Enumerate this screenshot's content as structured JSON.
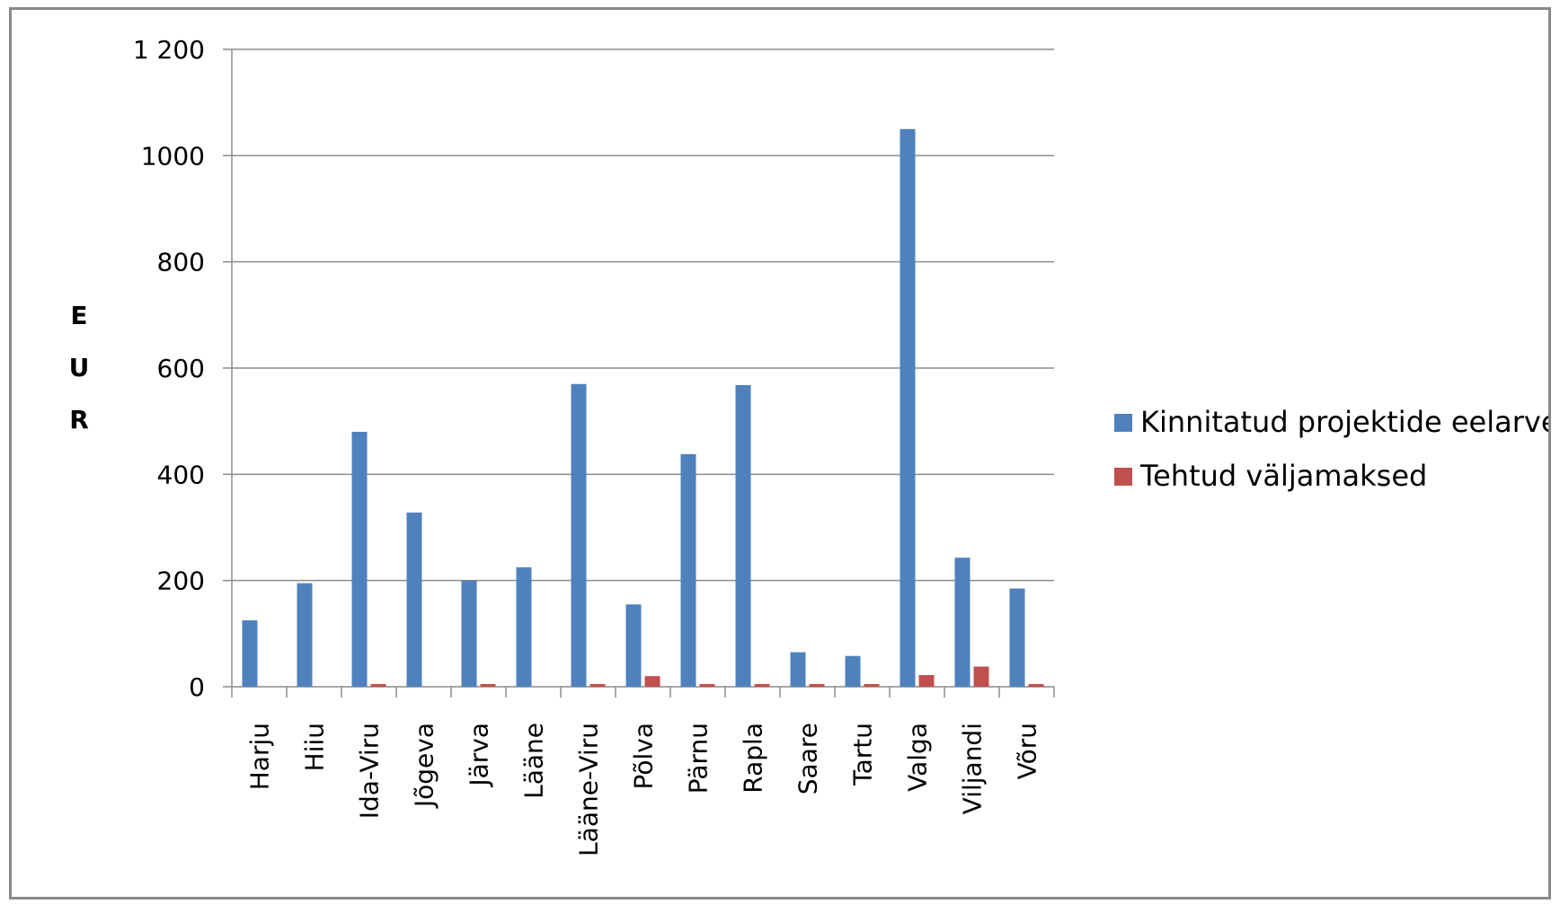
{
  "chart_data": {
    "type": "bar",
    "title": "",
    "xlabel": "",
    "ylabel": "EUR",
    "ylim": [
      0,
      1200
    ],
    "yticks": [
      0,
      200,
      400,
      600,
      800,
      1000,
      1200
    ],
    "ytick_labels": [
      "0",
      "200",
      "400",
      "600",
      "800",
      "1000",
      "1 200"
    ],
    "grid": true,
    "legend_position": "right",
    "categories": [
      "Harju",
      "Hiiu",
      "Ida-Viru",
      "Jõgeva",
      "Järva",
      "Lääne",
      "Lääne-Viru",
      "Põlva",
      "Pärnu",
      "Rapla",
      "Saare",
      "Tartu",
      "Valga",
      "Viljandi",
      "Võru"
    ],
    "series": [
      {
        "name": "Kinnitatud projektide eelarved",
        "color": "#4f81bd",
        "values": [
          125,
          195,
          480,
          328,
          200,
          225,
          570,
          155,
          438,
          568,
          65,
          58,
          1050,
          243,
          185
        ]
      },
      {
        "name": "Tehtud väljamaksed",
        "color": "#c0504d",
        "values": [
          0,
          0,
          2,
          0,
          2,
          0,
          2,
          20,
          2,
          5,
          2,
          2,
          22,
          38,
          5
        ]
      }
    ]
  }
}
